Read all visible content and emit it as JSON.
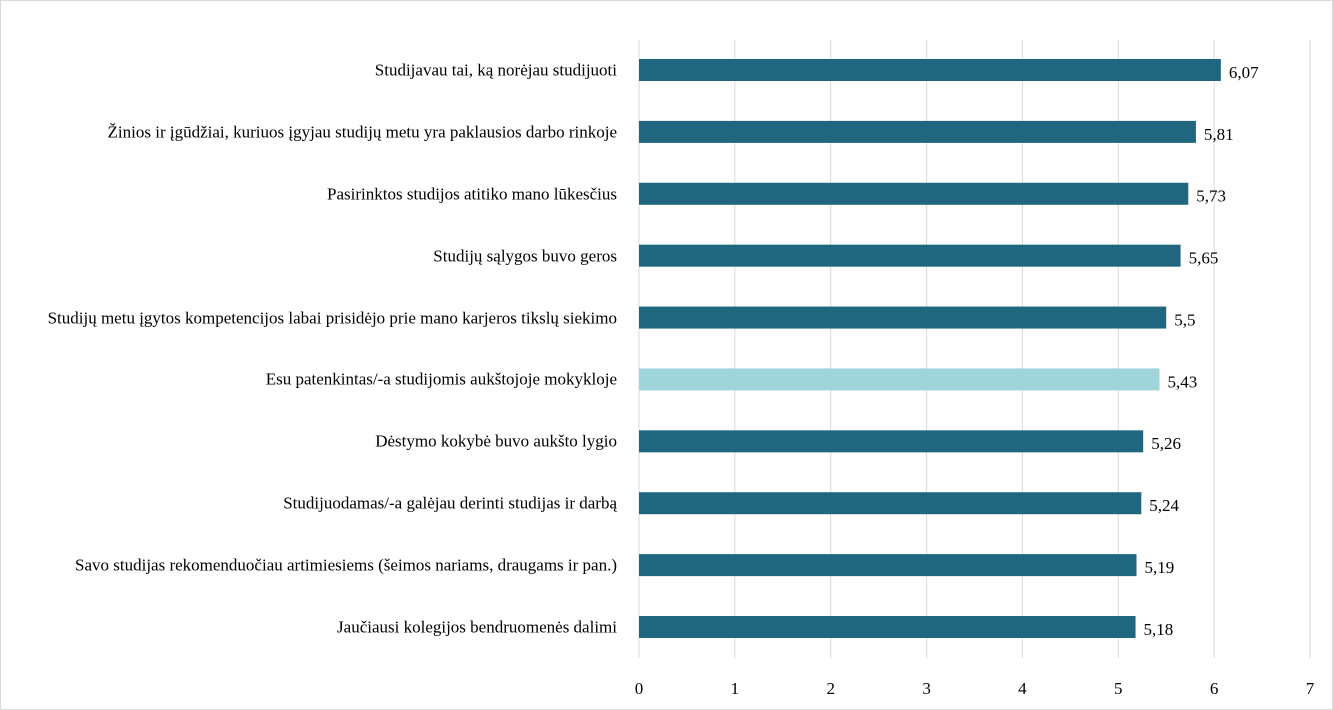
{
  "chart_data": {
    "type": "hbar",
    "categories": [
      "Studijavau tai, ką norėjau studijuoti",
      "Žinios ir įgūdžiai, kuriuos įgyjau studijų metu yra paklausios darbo rinkoje",
      "Pasirinktos studijos atitiko mano lūkesčius",
      "Studijų sąlygos buvo geros",
      "Studijų metu įgytos kompetencijos labai prisidėjo prie mano karjeros tikslų siekimo",
      "Esu patenkintas/-a studijomis aukštojoje mokykloje",
      "Dėstymo kokybė buvo aukšto lygio",
      "Studijuodamas/-a galėjau derinti studijas ir darbą",
      "Savo studijas rekomenduočiau artimiesiems (šeimos nariams, draugams ir pan.)",
      "Jaučiausi kolegijos bendruomenės dalimi"
    ],
    "values": [
      6.07,
      5.81,
      5.73,
      5.65,
      5.5,
      5.43,
      5.26,
      5.24,
      5.19,
      5.18
    ],
    "value_labels": [
      "6,07",
      "5,81",
      "5,73",
      "5,65",
      "5,5",
      "5,43",
      "5,26",
      "5,24",
      "5,19",
      "5,18"
    ],
    "colors": [
      "#1f667e",
      "#1f667e",
      "#1f667e",
      "#1f667e",
      "#1f667e",
      "#9fd5da",
      "#1f667e",
      "#1f667e",
      "#1f667e",
      "#1f667e"
    ],
    "xlim": [
      0,
      7
    ],
    "xticks": [
      0,
      1,
      2,
      3,
      4,
      5,
      6,
      7
    ],
    "grid": true
  }
}
